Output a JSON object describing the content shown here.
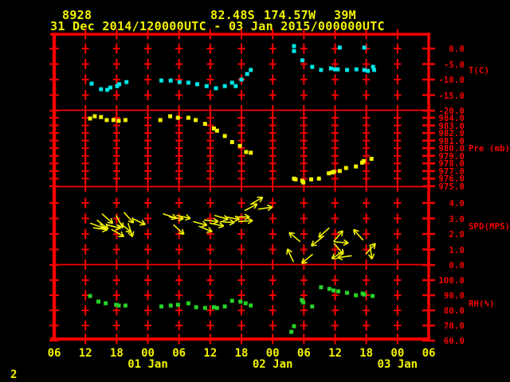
{
  "header": {
    "station_id": "8928",
    "latitude": "82.48S",
    "longitude": "174.57W",
    "elevation": "39M",
    "time_range": "31 Dec 2014/120000UTC - 03 Jan 2015/000000UTC"
  },
  "footer": {
    "page_number": "2"
  },
  "colors": {
    "background": "#000000",
    "frame_red": "#f80000",
    "label_yellow": "#f2f200",
    "temp_cyan": "#00e6e6",
    "pressure_yellow": "#f2f200",
    "wind_yellow": "#f2f200",
    "rh_green": "#27d227"
  },
  "x_axis": {
    "hours_span": 72,
    "tick_step_hours": 6,
    "hour_labels": [
      "06",
      "12",
      "18",
      "00",
      "06",
      "12",
      "18",
      "00",
      "06",
      "12",
      "18",
      "00",
      "06"
    ],
    "date_labels": [
      {
        "offset_h": 18,
        "label": "01 Jan"
      },
      {
        "offset_h": 42,
        "label": "02 Jan"
      },
      {
        "offset_h": 66,
        "label": "03 Jan"
      }
    ]
  },
  "chart_data": [
    {
      "type": "scatter",
      "ylabel": "T(C)",
      "ylim": [
        -20,
        0
      ],
      "yticks": [
        0,
        -5,
        -10,
        -15,
        -20
      ],
      "grid_rows": [
        0,
        -5,
        -10,
        -15
      ],
      "points_hours_vs_value": [
        [
          7.2,
          -11.3
        ],
        [
          9.0,
          -13.1
        ],
        [
          10.2,
          -13.3
        ],
        [
          10.8,
          -12.6
        ],
        [
          12.1,
          -12.1
        ],
        [
          12.5,
          -11.5
        ],
        [
          13.9,
          -10.8
        ],
        [
          20.6,
          -10.3
        ],
        [
          22.4,
          -10.3
        ],
        [
          24.1,
          -10.8
        ],
        [
          25.8,
          -11.0
        ],
        [
          27.5,
          -11.5
        ],
        [
          29.3,
          -12.1
        ],
        [
          31.1,
          -12.8
        ],
        [
          32.8,
          -12.1
        ],
        [
          34.2,
          -11.0
        ],
        [
          34.9,
          -12.1
        ],
        [
          36.0,
          -10.0
        ],
        [
          37.1,
          -8.2
        ],
        [
          37.8,
          -6.9
        ],
        [
          46.1,
          0.8
        ],
        [
          46.1,
          -0.8
        ],
        [
          47.7,
          -3.8
        ],
        [
          49.6,
          -5.9
        ],
        [
          51.3,
          -6.9
        ],
        [
          53.2,
          -6.4
        ],
        [
          54.0,
          -6.7
        ],
        [
          54.5,
          -6.7
        ],
        [
          54.9,
          0.3
        ],
        [
          56.3,
          -6.9
        ],
        [
          58.1,
          -6.7
        ],
        [
          59.6,
          0.3
        ],
        [
          59.6,
          -6.9
        ],
        [
          60.3,
          -7.2
        ],
        [
          61.3,
          -5.9
        ],
        [
          61.5,
          -6.9
        ]
      ]
    },
    {
      "type": "scatter",
      "ylabel": "Pre (mb)",
      "ylim": [
        975,
        984
      ],
      "yticks": [
        984,
        983,
        982,
        981,
        980,
        979,
        978,
        977,
        976,
        975
      ],
      "grid_rows": [
        984,
        983,
        982,
        981,
        980,
        979,
        978,
        977,
        976
      ],
      "points_hours_vs_value": [
        [
          6.9,
          983.9
        ],
        [
          7.8,
          984.2
        ],
        [
          9.0,
          984.1
        ],
        [
          10.1,
          983.7
        ],
        [
          11.4,
          983.7
        ],
        [
          12.4,
          983.6
        ],
        [
          13.7,
          983.7
        ],
        [
          20.4,
          983.7
        ],
        [
          22.3,
          984.2
        ],
        [
          23.8,
          984.0
        ],
        [
          25.8,
          984.0
        ],
        [
          27.2,
          983.7
        ],
        [
          29.0,
          983.2
        ],
        [
          30.7,
          982.6
        ],
        [
          31.3,
          982.3
        ],
        [
          32.8,
          981.6
        ],
        [
          34.2,
          980.8
        ],
        [
          35.7,
          980.3
        ],
        [
          36.9,
          979.5
        ],
        [
          37.8,
          979.4
        ],
        [
          46.1,
          976.0
        ],
        [
          46.4,
          975.9
        ],
        [
          47.7,
          975.7
        ],
        [
          47.9,
          975.5
        ],
        [
          49.4,
          975.9
        ],
        [
          50.9,
          976.0
        ],
        [
          52.8,
          976.7
        ],
        [
          53.4,
          976.8
        ],
        [
          53.8,
          976.9
        ],
        [
          54.9,
          977.0
        ],
        [
          56.1,
          977.4
        ],
        [
          58.0,
          977.6
        ],
        [
          59.2,
          978.1
        ],
        [
          59.5,
          978.3
        ],
        [
          61.0,
          978.6
        ]
      ]
    },
    {
      "type": "vector",
      "ylabel": "SPD(MPS)",
      "ylim": [
        0,
        4
      ],
      "yticks": [
        4,
        3,
        2,
        1,
        0
      ],
      "grid_rows": [
        4,
        3,
        2,
        1
      ],
      "arrows_hours_speed_dirdeg": [
        [
          6.9,
          2.7,
          20
        ],
        [
          7.5,
          2.4,
          8
        ],
        [
          8.2,
          2.9,
          38
        ],
        [
          9.2,
          3.3,
          42
        ],
        [
          10.1,
          2.6,
          15
        ],
        [
          11.0,
          2.3,
          30
        ],
        [
          11.9,
          3.2,
          62
        ],
        [
          12.7,
          2.7,
          40
        ],
        [
          13.4,
          3.4,
          48
        ],
        [
          14.2,
          2.7,
          72
        ],
        [
          15.0,
          3.0,
          25
        ],
        [
          20.9,
          3.3,
          18
        ],
        [
          22.1,
          3.1,
          8
        ],
        [
          22.9,
          2.6,
          42
        ],
        [
          23.5,
          3.2,
          12
        ],
        [
          26.7,
          2.8,
          15
        ],
        [
          27.8,
          2.5,
          22
        ],
        [
          28.8,
          2.9,
          6
        ],
        [
          29.9,
          2.7,
          12
        ],
        [
          30.8,
          3.2,
          16
        ],
        [
          31.9,
          2.8,
          4
        ],
        [
          32.9,
          3.1,
          10
        ],
        [
          34.8,
          3.1,
          0
        ],
        [
          35.4,
          2.8,
          -4
        ],
        [
          36.6,
          3.5,
          -28
        ],
        [
          37.7,
          3.9,
          -30
        ],
        [
          39.2,
          3.6,
          -8
        ],
        [
          46.0,
          0.2,
          -115
        ],
        [
          47.3,
          1.5,
          -140
        ],
        [
          49.7,
          0.7,
          140
        ],
        [
          51.6,
          1.8,
          142
        ],
        [
          52.9,
          2.4,
          138
        ],
        [
          53.7,
          1.5,
          -50
        ],
        [
          53.8,
          1.5,
          5
        ],
        [
          53.8,
          1.4,
          50
        ],
        [
          55.7,
          0.9,
          148
        ],
        [
          57.2,
          0.6,
          172
        ],
        [
          59.4,
          1.6,
          -132
        ],
        [
          59.9,
          0.7,
          -48
        ],
        [
          60.7,
          1.3,
          82
        ]
      ]
    },
    {
      "type": "scatter",
      "ylabel": "RH(%)",
      "ylim": [
        60,
        100
      ],
      "yticks": [
        100,
        90,
        80,
        70,
        60
      ],
      "grid_rows": [
        100,
        90,
        80,
        70
      ],
      "points_hours_vs_value": [
        [
          6.9,
          89.5
        ],
        [
          8.5,
          85.8
        ],
        [
          9.9,
          84.7
        ],
        [
          11.9,
          83.7
        ],
        [
          12.4,
          83.2
        ],
        [
          13.7,
          83.2
        ],
        [
          20.6,
          82.6
        ],
        [
          22.4,
          83.2
        ],
        [
          23.8,
          83.7
        ],
        [
          25.8,
          84.7
        ],
        [
          27.3,
          82.1
        ],
        [
          29.0,
          81.6
        ],
        [
          30.7,
          82.1
        ],
        [
          31.3,
          81.6
        ],
        [
          32.8,
          82.6
        ],
        [
          34.2,
          86.3
        ],
        [
          35.8,
          85.8
        ],
        [
          36.8,
          84.7
        ],
        [
          37.8,
          83.2
        ],
        [
          45.6,
          65.8
        ],
        [
          46.1,
          69.5
        ],
        [
          47.6,
          86.8
        ],
        [
          47.9,
          85.3
        ],
        [
          49.6,
          82.6
        ],
        [
          51.3,
          95.3
        ],
        [
          52.9,
          94.2
        ],
        [
          53.7,
          93.2
        ],
        [
          54.6,
          92.6
        ],
        [
          56.3,
          91.6
        ],
        [
          58.0,
          90.0
        ],
        [
          59.3,
          91.1
        ],
        [
          59.6,
          90.5
        ],
        [
          61.2,
          89.5
        ]
      ]
    }
  ]
}
